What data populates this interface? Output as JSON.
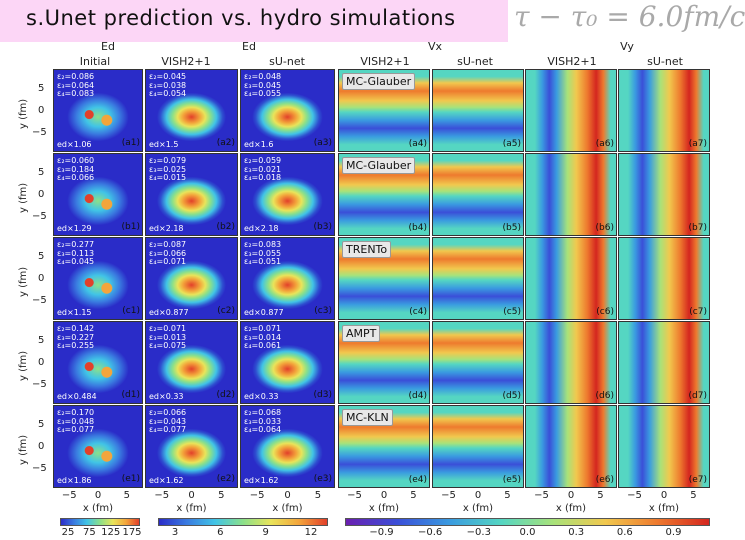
{
  "slide": {
    "title": "s.Unet prediction vs. hydro simulations",
    "equation": "τ − τ₀ = 6.0fm/c"
  },
  "top_labels": {
    "ed1": "Ed",
    "ed2": "Ed",
    "vx": "Vx",
    "vy": "Vy",
    "initial": "Initial",
    "vish_a": "VISH2+1",
    "sunet_a": "sU-net",
    "vish_b": "VISH2+1",
    "sunet_b": "sU-net",
    "vish_c": "VISH2+1",
    "sunet_c": "sU-net"
  },
  "rows": [
    {
      "key": "a",
      "model": "MC-Glauber",
      "c1": "ε₂=0.086\nε₃=0.064\nε₄=0.083",
      "c2": "ε₂=0.045\nε₃=0.038\nε₄=0.054",
      "c3": "ε₂=0.048\nε₃=0.045\nε₄=0.055",
      "e1": "ed×1.06",
      "e2": "ed×1.5",
      "e3": "ed×1.6",
      "tags": [
        "(a1)",
        "(a2)",
        "(a3)",
        "(a4)",
        "(a5)",
        "(a6)",
        "(a7)"
      ]
    },
    {
      "key": "b",
      "model": "MC-Glauber",
      "c1": "ε₂=0.060\nε₃=0.184\nε₄=0.066",
      "c2": "ε₂=0.079\nε₃=0.025\nε₄=0.015",
      "c3": "ε₂=0.059\nε₃=0.021\nε₄=0.018",
      "e1": "ed×1.29",
      "e2": "ed×2.18",
      "e3": "ed×2.18",
      "tags": [
        "(b1)",
        "(b2)",
        "(b3)",
        "(b4)",
        "(b5)",
        "(b6)",
        "(b7)"
      ]
    },
    {
      "key": "c",
      "model": "TRENTo",
      "c1": "ε₂=0.277\nε₃=0.113\nε₄=0.045",
      "c2": "ε₂=0.087\nε₃=0.066\nε₄=0.071",
      "c3": "ε₂=0.083\nε₃=0.055\nε₄=0.051",
      "e1": "ed×1.15",
      "e2": "ed×0.877",
      "e3": "ed×0.877",
      "tags": [
        "(c1)",
        "(c2)",
        "(c3)",
        "(c4)",
        "(c5)",
        "(c6)",
        "(c7)"
      ]
    },
    {
      "key": "d",
      "model": "AMPT",
      "c1": "ε₂=0.142\nε₃=0.227\nε₄=0.255",
      "c2": "ε₂=0.071\nε₃=0.013\nε₄=0.075",
      "c3": "ε₂=0.071\nε₃=0.014\nε₄=0.061",
      "e1": "ed×0.484",
      "e2": "ed×0.33",
      "e3": "ed×0.33",
      "tags": [
        "(d1)",
        "(d2)",
        "(d3)",
        "(d4)",
        "(d5)",
        "(d6)",
        "(d7)"
      ]
    },
    {
      "key": "e",
      "model": "MC-KLN",
      "c1": "ε₂=0.170\nε₃=0.048\nε₄=0.077",
      "c2": "ε₂=0.066\nε₃=0.043\nε₄=0.077",
      "c3": "ε₂=0.068\nε₃=0.033\nε₄=0.064",
      "e1": "ed×1.86",
      "e2": "ed×1.62",
      "e3": "ed×1.62",
      "tags": [
        "(e1)",
        "(e2)",
        "(e3)",
        "(e4)",
        "(e5)",
        "(e6)",
        "(e7)"
      ]
    }
  ],
  "axes": {
    "ylabel": "y (fm)",
    "xlabel": "x (fm)",
    "yticks": [
      "5",
      "0",
      "−5"
    ],
    "xticks": [
      "−5",
      "0",
      "5"
    ]
  },
  "colorbars": [
    {
      "name": "initial-ed",
      "ticks": [
        "25",
        "75",
        "125",
        "175"
      ],
      "colors": [
        "#2a2cc8",
        "#3a7be0",
        "#41c4e6",
        "#8be08a",
        "#e9e45a",
        "#f3a53b",
        "#e2402a"
      ]
    },
    {
      "name": "final-ed",
      "ticks": [
        "3",
        "6",
        "9",
        "12"
      ],
      "colors": [
        "#2a2cc8",
        "#3a7be0",
        "#41c4e6",
        "#8be08a",
        "#e9e45a",
        "#f3a53b",
        "#e2402a"
      ]
    },
    {
      "name": "velocity",
      "ticks": [
        "−0.9",
        "−0.6",
        "−0.3",
        "0.0",
        "0.3",
        "0.6",
        "0.9"
      ],
      "colors": [
        "#6a1fb0",
        "#3a4fd8",
        "#3a9be0",
        "#55d6c2",
        "#a8e27a",
        "#f1c84e",
        "#ee7a2e",
        "#d4261f"
      ]
    }
  ]
}
